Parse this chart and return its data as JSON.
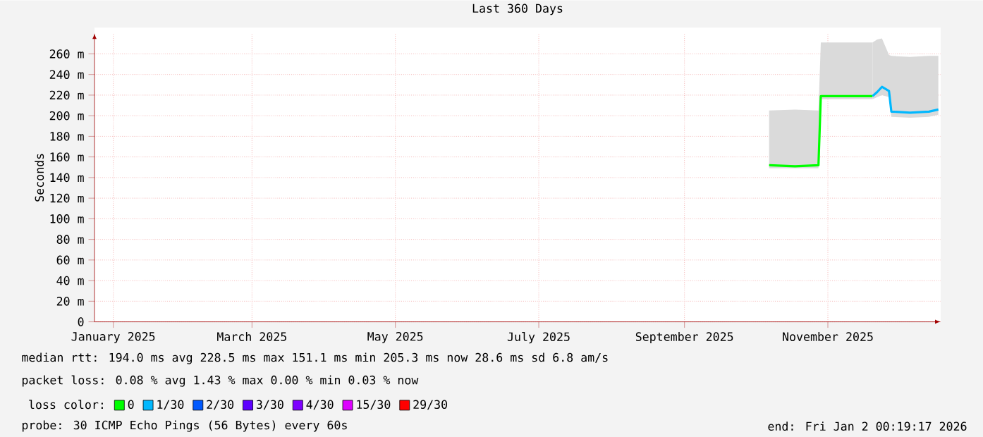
{
  "chart_data": {
    "type": "line",
    "title": "Last 360 Days",
    "ylabel": "Seconds",
    "xlim": [
      "2025-01-07",
      "2026-01-02"
    ],
    "xticks": [
      {
        "value": "2025-01-15",
        "label": "January 2025"
      },
      {
        "value": "2025-03-15",
        "label": "March 2025"
      },
      {
        "value": "2025-05-15",
        "label": "May 2025"
      },
      {
        "value": "2025-07-15",
        "label": "July 2025"
      },
      {
        "value": "2025-09-15",
        "label": "September 2025"
      },
      {
        "value": "2025-11-15",
        "label": "November 2025"
      }
    ],
    "ylim": [
      0,
      280
    ],
    "yticks": [
      0,
      {
        "value": 20,
        "label": "20 m"
      },
      {
        "value": 40,
        "label": "40 m"
      },
      {
        "value": 60,
        "label": "60 m"
      },
      {
        "value": 80,
        "label": "80 m"
      },
      {
        "value": 100,
        "label": "100 m"
      },
      {
        "value": 120,
        "label": "120 m"
      },
      {
        "value": 140,
        "label": "140 m"
      },
      {
        "value": 160,
        "label": "160 m"
      },
      {
        "value": 180,
        "label": "180 m"
      },
      {
        "value": 200,
        "label": "200 m"
      },
      {
        "value": 220,
        "label": "220 m"
      },
      {
        "value": 240,
        "label": "240 m"
      },
      {
        "value": 260,
        "label": "260 m"
      }
    ],
    "grid": true,
    "legend": "bottom",
    "legend_title": "loss color:",
    "series": [
      {
        "name": "0",
        "color": "#00ff00",
        "x": [
          "2025-10-21",
          "2025-11-01",
          "2025-11-11",
          "2025-11-12",
          "2025-11-24",
          "2025-12-04"
        ],
        "values": [
          152,
          151,
          152,
          219,
          219,
          219
        ],
        "lower": [
          149,
          149,
          149,
          216,
          216,
          216
        ],
        "upper": [
          205,
          206,
          205,
          271,
          271,
          271
        ]
      },
      {
        "name": "1/30",
        "color": "#00b8ff",
        "x": [
          "2025-12-04",
          "2025-12-06",
          "2025-12-08",
          "2025-12-11",
          "2025-12-12",
          "2025-12-20",
          "2025-12-28",
          "2026-01-01"
        ],
        "values": [
          219,
          223,
          228,
          224,
          204,
          203,
          204,
          206
        ],
        "lower": [
          216,
          218,
          220,
          218,
          199,
          198,
          199,
          201
        ],
        "upper": [
          271,
          274,
          275,
          259,
          258,
          257,
          258,
          258
        ]
      },
      {
        "name": "2/30",
        "color": "#0059ff",
        "values": [
          null
        ]
      },
      {
        "name": "3/30",
        "color": "#5e00ff",
        "values": [
          null
        ]
      },
      {
        "name": "4/30",
        "color": "#7e00ff",
        "values": [
          null
        ]
      },
      {
        "name": "15/30",
        "color": "#dd00ff",
        "values": [
          null
        ]
      },
      {
        "name": "29/30",
        "color": "#ff0000",
        "values": [
          null
        ]
      }
    ],
    "annotations": [
      "median rtt:  194.0 ms avg  228.5 ms max  151.1 ms min  205.3 ms now  28.6 ms sd  6.8   am/s",
      "packet loss: 0.08 % avg  1.43 % max  0.00 % min  0.03 % now",
      "probe:       30 ICMP Echo Pings (56 Bytes) every 60s",
      "end: Fri Jan  2 00:19:17 2026"
    ]
  }
}
